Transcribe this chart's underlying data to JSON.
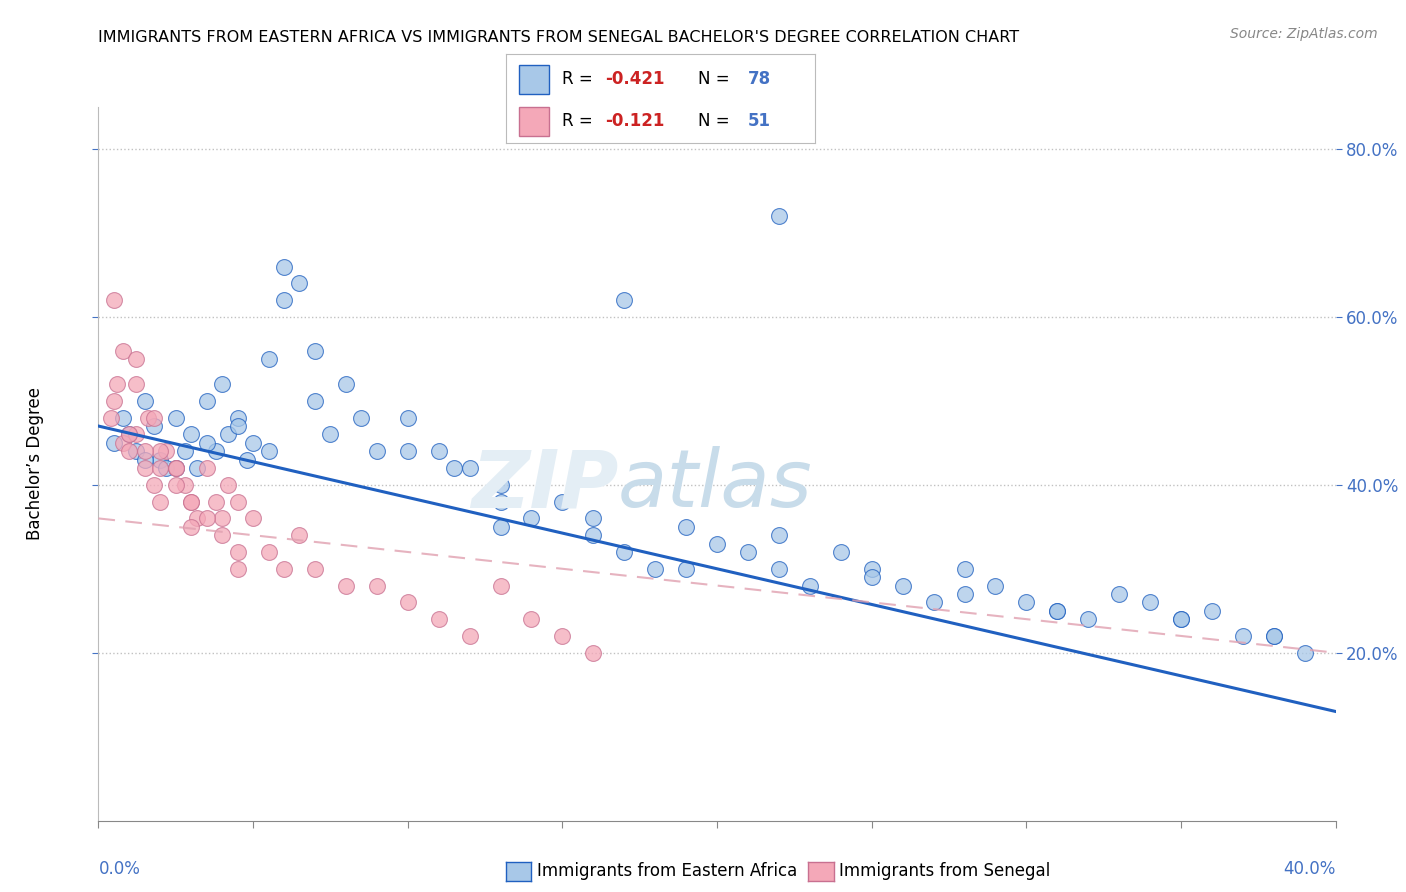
{
  "title": "IMMIGRANTS FROM EASTERN AFRICA VS IMMIGRANTS FROM SENEGAL BACHELOR'S DEGREE CORRELATION CHART",
  "source": "Source: ZipAtlas.com",
  "ylabel": "Bachelor’s Degree",
  "y_ticks": [
    0.2,
    0.4,
    0.6,
    0.8
  ],
  "y_tick_labels": [
    "20.0%",
    "40.0%",
    "60.0%",
    "80.0%"
  ],
  "x_lim": [
    0.0,
    0.4
  ],
  "y_lim": [
    0.0,
    0.85
  ],
  "legend_r1": "R = -0.421",
  "legend_n1": "N = 78",
  "legend_r2": "R = -0.121",
  "legend_n2": "N = 51",
  "color_blue": "#a8c8e8",
  "color_pink": "#f4a8b8",
  "trendline_blue": "#2060c0",
  "trendline_pink": "#e0a0b0",
  "blue_x": [
    0.005,
    0.008,
    0.01,
    0.012,
    0.015,
    0.018,
    0.02,
    0.022,
    0.025,
    0.028,
    0.03,
    0.032,
    0.035,
    0.038,
    0.04,
    0.042,
    0.045,
    0.048,
    0.05,
    0.055,
    0.06,
    0.065,
    0.07,
    0.075,
    0.08,
    0.09,
    0.1,
    0.11,
    0.12,
    0.13,
    0.14,
    0.15,
    0.16,
    0.17,
    0.18,
    0.19,
    0.2,
    0.21,
    0.22,
    0.23,
    0.24,
    0.25,
    0.26,
    0.27,
    0.28,
    0.29,
    0.3,
    0.31,
    0.32,
    0.33,
    0.34,
    0.35,
    0.36,
    0.37,
    0.38,
    0.39,
    0.015,
    0.025,
    0.035,
    0.045,
    0.055,
    0.07,
    0.085,
    0.1,
    0.115,
    0.13,
    0.16,
    0.19,
    0.22,
    0.25,
    0.28,
    0.31,
    0.35,
    0.38,
    0.22,
    0.17,
    0.06,
    0.13
  ],
  "blue_y": [
    0.45,
    0.48,
    0.46,
    0.44,
    0.5,
    0.47,
    0.43,
    0.42,
    0.48,
    0.44,
    0.46,
    0.42,
    0.5,
    0.44,
    0.52,
    0.46,
    0.48,
    0.43,
    0.45,
    0.55,
    0.62,
    0.64,
    0.5,
    0.46,
    0.52,
    0.44,
    0.48,
    0.44,
    0.42,
    0.4,
    0.36,
    0.38,
    0.34,
    0.32,
    0.3,
    0.35,
    0.33,
    0.32,
    0.3,
    0.28,
    0.32,
    0.3,
    0.28,
    0.26,
    0.3,
    0.28,
    0.26,
    0.25,
    0.24,
    0.27,
    0.26,
    0.24,
    0.25,
    0.22,
    0.22,
    0.2,
    0.43,
    0.42,
    0.45,
    0.47,
    0.44,
    0.56,
    0.48,
    0.44,
    0.42,
    0.38,
    0.36,
    0.3,
    0.34,
    0.29,
    0.27,
    0.25,
    0.24,
    0.22,
    0.72,
    0.62,
    0.66,
    0.35
  ],
  "pink_x": [
    0.004,
    0.006,
    0.008,
    0.01,
    0.012,
    0.015,
    0.018,
    0.02,
    0.022,
    0.025,
    0.028,
    0.03,
    0.032,
    0.035,
    0.038,
    0.04,
    0.042,
    0.045,
    0.005,
    0.008,
    0.012,
    0.016,
    0.02,
    0.025,
    0.03,
    0.035,
    0.04,
    0.045,
    0.05,
    0.055,
    0.06,
    0.065,
    0.07,
    0.08,
    0.09,
    0.1,
    0.11,
    0.12,
    0.13,
    0.14,
    0.15,
    0.16,
    0.005,
    0.01,
    0.015,
    0.02,
    0.025,
    0.012,
    0.018,
    0.03,
    0.045
  ],
  "pink_y": [
    0.48,
    0.52,
    0.45,
    0.44,
    0.46,
    0.42,
    0.4,
    0.38,
    0.44,
    0.42,
    0.4,
    0.38,
    0.36,
    0.42,
    0.38,
    0.36,
    0.4,
    0.38,
    0.62,
    0.56,
    0.52,
    0.48,
    0.44,
    0.42,
    0.38,
    0.36,
    0.34,
    0.32,
    0.36,
    0.32,
    0.3,
    0.34,
    0.3,
    0.28,
    0.28,
    0.26,
    0.24,
    0.22,
    0.28,
    0.24,
    0.22,
    0.2,
    0.5,
    0.46,
    0.44,
    0.42,
    0.4,
    0.55,
    0.48,
    0.35,
    0.3
  ]
}
